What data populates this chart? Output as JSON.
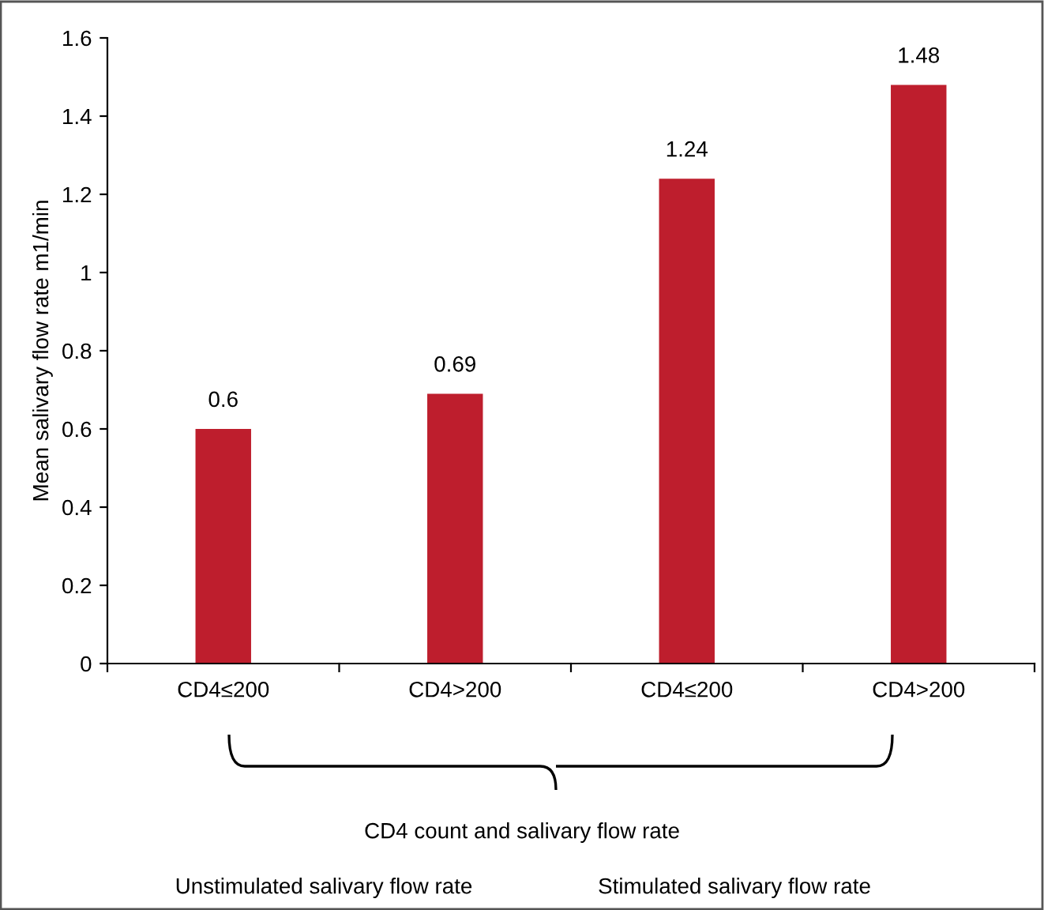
{
  "chart_data": {
    "type": "bar",
    "categories": [
      "CD4≤200",
      "CD4>200",
      "CD4≤200",
      "CD4>200"
    ],
    "values": [
      0.6,
      0.69,
      1.24,
      1.48
    ],
    "color": "#be1e2d",
    "data_labels": true,
    "ylabel": "Mean salivary flow rate m1/min",
    "ylim": [
      0,
      1.6
    ],
    "yticks": [
      0,
      0.2,
      0.4,
      0.6,
      0.8,
      1,
      1.2,
      1.4,
      1.6
    ],
    "annotations": [
      "CD4 count and salivary flow rate",
      "Unstimulated salivary flow rate",
      "Stimulated salivary flow rate"
    ]
  }
}
